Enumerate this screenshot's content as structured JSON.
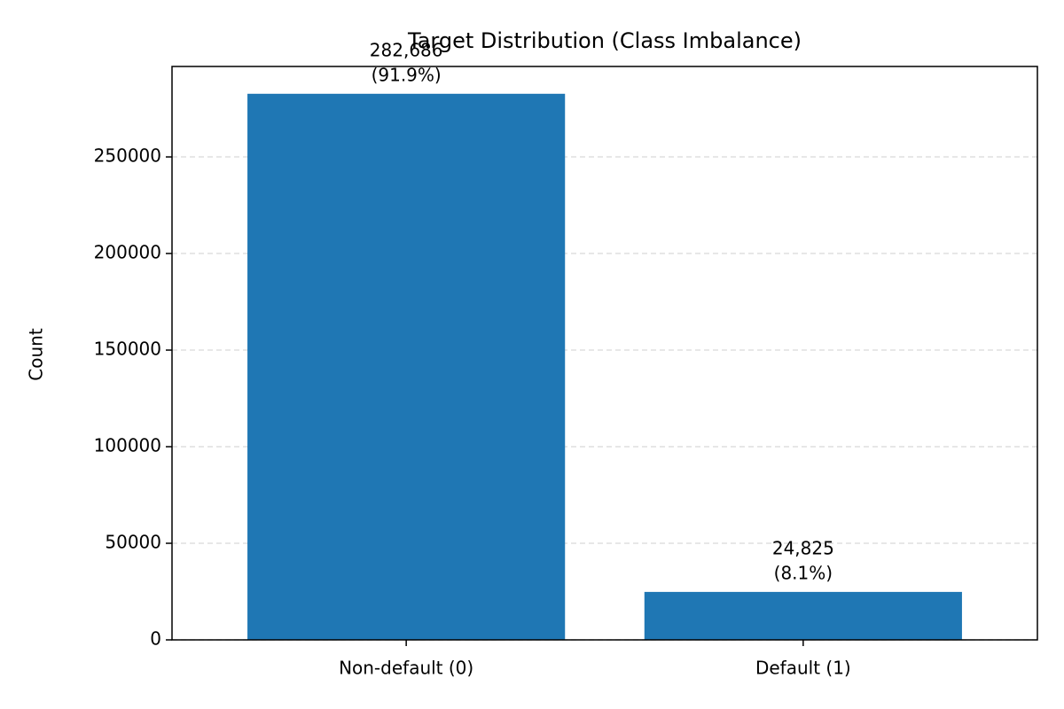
{
  "chart_data": {
    "type": "bar",
    "title": "Target Distribution (Class Imbalance)",
    "y_label": "Count",
    "categories": [
      "Non-default (0)",
      "Default (1)"
    ],
    "values": [
      282686,
      24825
    ],
    "value_labels": [
      "282,686",
      "24,825"
    ],
    "share_labels": [
      "(91.9%)",
      "(8.1%)"
    ],
    "color": "#1f77b4",
    "ylim": [
      0,
      296820
    ],
    "yticks": [
      0,
      50000,
      100000,
      150000,
      200000,
      250000
    ],
    "grid": true
  }
}
